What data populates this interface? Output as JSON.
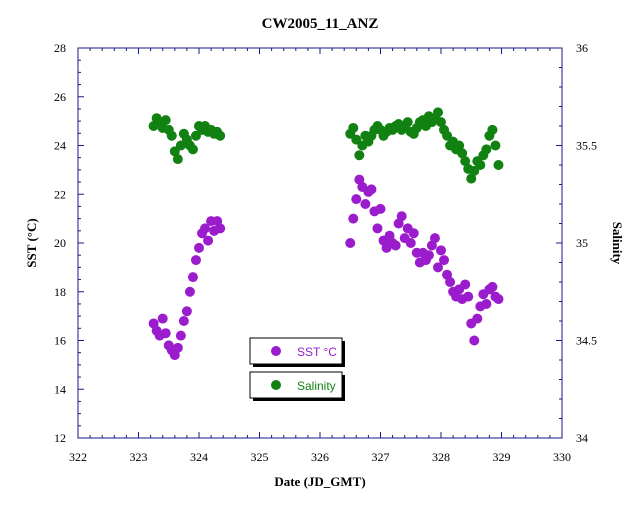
{
  "chart_data": {
    "type": "scatter",
    "title": "CW2005_11_ANZ",
    "xlabel": "Date (JD_GMT)",
    "ylabel": "SST (°C)",
    "y2label": "Salinity",
    "xlim": [
      322,
      330
    ],
    "ylim": [
      12,
      28
    ],
    "y2lim": [
      34,
      36
    ],
    "xticks": [
      "322",
      "323",
      "324",
      "325",
      "326",
      "327",
      "328",
      "329",
      "330"
    ],
    "yticks": [
      "12",
      "14",
      "16",
      "18",
      "20",
      "22",
      "24",
      "26",
      "28"
    ],
    "y2ticks": [
      "34",
      "34.5",
      "35",
      "35.5",
      "36"
    ],
    "grid": false,
    "legend_placement": "center-bottom",
    "colors": {
      "sst": "#9b1ccc",
      "salinity": "#118111"
    },
    "series": [
      {
        "name": "SST °C",
        "axis": "left",
        "points": [
          [
            323.25,
            16.7
          ],
          [
            323.3,
            16.4
          ],
          [
            323.35,
            16.2
          ],
          [
            323.4,
            16.9
          ],
          [
            323.45,
            16.3
          ],
          [
            323.5,
            15.8
          ],
          [
            323.55,
            15.6
          ],
          [
            323.6,
            15.4
          ],
          [
            323.65,
            15.7
          ],
          [
            323.7,
            16.2
          ],
          [
            323.75,
            16.8
          ],
          [
            323.8,
            17.2
          ],
          [
            323.85,
            18.0
          ],
          [
            323.9,
            18.6
          ],
          [
            323.95,
            19.3
          ],
          [
            324.0,
            19.8
          ],
          [
            324.05,
            20.4
          ],
          [
            324.1,
            20.6
          ],
          [
            324.15,
            20.1
          ],
          [
            324.2,
            20.9
          ],
          [
            324.25,
            20.5
          ],
          [
            324.3,
            20.9
          ],
          [
            324.35,
            20.6
          ],
          [
            326.5,
            20.0
          ],
          [
            326.55,
            21.0
          ],
          [
            326.6,
            21.8
          ],
          [
            326.65,
            22.6
          ],
          [
            326.7,
            22.3
          ],
          [
            326.75,
            21.6
          ],
          [
            326.8,
            22.1
          ],
          [
            326.85,
            22.2
          ],
          [
            326.9,
            21.3
          ],
          [
            326.95,
            20.6
          ],
          [
            327.0,
            21.4
          ],
          [
            327.05,
            20.1
          ],
          [
            327.1,
            19.8
          ],
          [
            327.15,
            20.3
          ],
          [
            327.2,
            20.0
          ],
          [
            327.25,
            19.9
          ],
          [
            327.3,
            20.8
          ],
          [
            327.35,
            21.1
          ],
          [
            327.4,
            20.2
          ],
          [
            327.45,
            20.6
          ],
          [
            327.5,
            20.0
          ],
          [
            327.55,
            20.4
          ],
          [
            327.6,
            19.6
          ],
          [
            327.65,
            19.2
          ],
          [
            327.7,
            19.6
          ],
          [
            327.75,
            19.3
          ],
          [
            327.8,
            19.5
          ],
          [
            327.85,
            19.9
          ],
          [
            327.9,
            20.2
          ],
          [
            327.95,
            19.0
          ],
          [
            328.0,
            19.7
          ],
          [
            328.05,
            19.3
          ],
          [
            328.1,
            18.7
          ],
          [
            328.15,
            18.4
          ],
          [
            328.2,
            18.0
          ],
          [
            328.25,
            17.8
          ],
          [
            328.3,
            18.1
          ],
          [
            328.35,
            17.7
          ],
          [
            328.4,
            18.3
          ],
          [
            328.45,
            17.8
          ],
          [
            328.5,
            16.7
          ],
          [
            328.55,
            16.0
          ],
          [
            328.6,
            16.9
          ],
          [
            328.65,
            17.4
          ],
          [
            328.7,
            17.9
          ],
          [
            328.75,
            17.5
          ],
          [
            328.8,
            18.1
          ],
          [
            328.85,
            18.2
          ],
          [
            328.9,
            17.8
          ],
          [
            328.95,
            17.7
          ]
        ]
      },
      {
        "name": "Salinity",
        "axis": "right",
        "points": [
          [
            323.25,
            35.6
          ],
          [
            323.3,
            35.64
          ],
          [
            323.35,
            35.62
          ],
          [
            323.4,
            35.59
          ],
          [
            323.45,
            35.63
          ],
          [
            323.5,
            35.58
          ],
          [
            323.55,
            35.55
          ],
          [
            323.6,
            35.47
          ],
          [
            323.65,
            35.43
          ],
          [
            323.7,
            35.5
          ],
          [
            323.75,
            35.56
          ],
          [
            323.8,
            35.53
          ],
          [
            323.85,
            35.5
          ],
          [
            323.9,
            35.48
          ],
          [
            323.95,
            35.55
          ],
          [
            324.0,
            35.6
          ],
          [
            324.05,
            35.58
          ],
          [
            324.1,
            35.6
          ],
          [
            324.15,
            35.57
          ],
          [
            324.2,
            35.58
          ],
          [
            324.25,
            35.56
          ],
          [
            324.3,
            35.57
          ],
          [
            324.35,
            35.55
          ],
          [
            326.5,
            35.56
          ],
          [
            326.55,
            35.59
          ],
          [
            326.6,
            35.53
          ],
          [
            326.65,
            35.45
          ],
          [
            326.7,
            35.5
          ],
          [
            326.75,
            35.55
          ],
          [
            326.8,
            35.52
          ],
          [
            326.85,
            35.55
          ],
          [
            326.9,
            35.58
          ],
          [
            326.95,
            35.6
          ],
          [
            327.0,
            35.58
          ],
          [
            327.05,
            35.55
          ],
          [
            327.1,
            35.57
          ],
          [
            327.15,
            35.59
          ],
          [
            327.2,
            35.58
          ],
          [
            327.25,
            35.6
          ],
          [
            327.3,
            35.61
          ],
          [
            327.35,
            35.58
          ],
          [
            327.4,
            35.6
          ],
          [
            327.45,
            35.62
          ],
          [
            327.5,
            35.57
          ],
          [
            327.55,
            35.56
          ],
          [
            327.6,
            35.59
          ],
          [
            327.65,
            35.62
          ],
          [
            327.7,
            35.63
          ],
          [
            327.75,
            35.6
          ],
          [
            327.8,
            35.65
          ],
          [
            327.85,
            35.62
          ],
          [
            327.9,
            35.64
          ],
          [
            327.95,
            35.67
          ],
          [
            328.0,
            35.62
          ],
          [
            328.05,
            35.58
          ],
          [
            328.1,
            35.55
          ],
          [
            328.15,
            35.5
          ],
          [
            328.2,
            35.52
          ],
          [
            328.25,
            35.48
          ],
          [
            328.3,
            35.5
          ],
          [
            328.35,
            35.46
          ],
          [
            328.4,
            35.42
          ],
          [
            328.45,
            35.38
          ],
          [
            328.5,
            35.33
          ],
          [
            328.55,
            35.37
          ],
          [
            328.6,
            35.42
          ],
          [
            328.65,
            35.4
          ],
          [
            328.7,
            35.45
          ],
          [
            328.75,
            35.48
          ],
          [
            328.8,
            35.55
          ],
          [
            328.85,
            35.58
          ],
          [
            328.9,
            35.5
          ],
          [
            328.95,
            35.4
          ]
        ]
      }
    ]
  }
}
